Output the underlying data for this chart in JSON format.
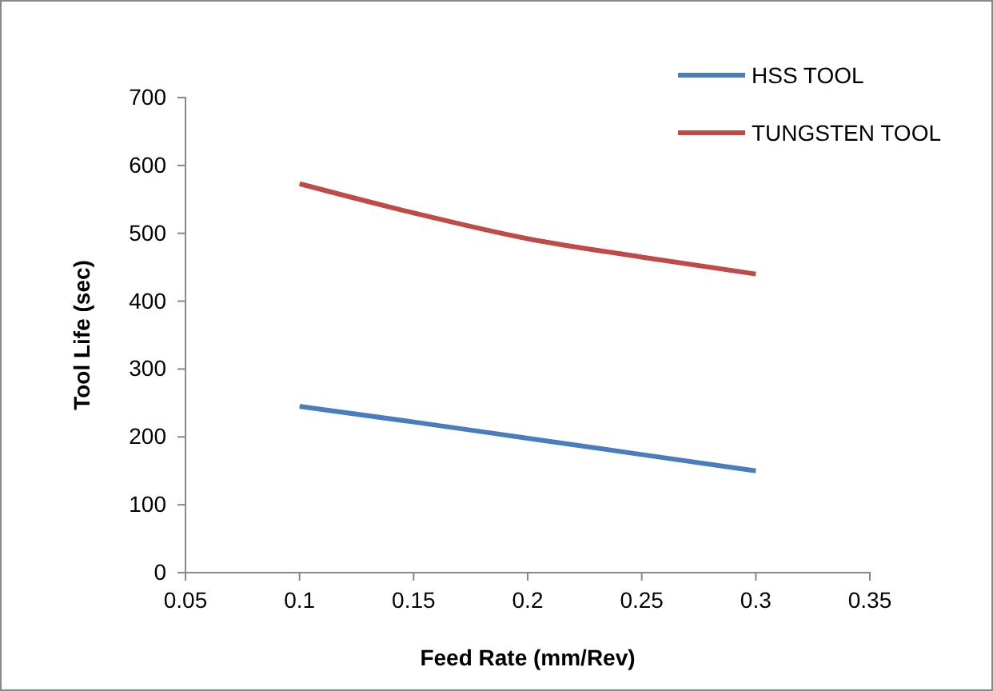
{
  "chart_data": {
    "type": "line",
    "xlabel": "Feed Rate (mm/Rev)",
    "ylabel": "Tool Life (sec)",
    "x": [
      0.1,
      0.15,
      0.2,
      0.25,
      0.3
    ],
    "series": [
      {
        "name": "HSS TOOL",
        "color": "#4a7ebb",
        "values": [
          245,
          222,
          198,
          174,
          150
        ]
      },
      {
        "name": "TUNGSTEN  TOOL",
        "color": "#be4b48",
        "values": [
          573,
          530,
          492,
          465,
          440
        ]
      }
    ],
    "xlim": [
      0.05,
      0.35
    ],
    "xticks": [
      0.05,
      0.1,
      0.15,
      0.2,
      0.25,
      0.3,
      0.35
    ],
    "ylim": [
      0,
      700
    ],
    "yticks": [
      0,
      100,
      200,
      300,
      400,
      500,
      600,
      700
    ],
    "grid": false,
    "legend": "top right",
    "marker": "none",
    "line_style": "solid"
  }
}
